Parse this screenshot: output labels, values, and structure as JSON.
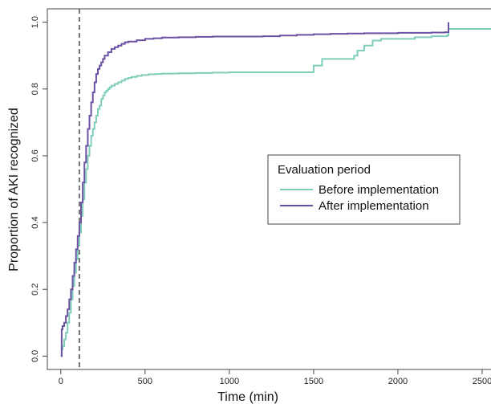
{
  "chart_data": {
    "type": "line",
    "xlabel": "Time (min)",
    "ylabel": "Proportion of AKI recognized",
    "xlim": [
      -80,
      2600
    ],
    "ylim": [
      -0.04,
      1.04
    ],
    "x_ticks": [
      0,
      500,
      1000,
      1500,
      2000,
      2500
    ],
    "y_ticks": [
      0.0,
      0.2,
      0.4,
      0.6,
      0.8,
      1.0
    ],
    "x_tick_labels": [
      "0",
      "500",
      "1000",
      "1500",
      "2000",
      "2500"
    ],
    "y_tick_labels": [
      "0.0",
      "0.2",
      "0.4",
      "0.6",
      "0.8",
      "1.0"
    ],
    "reference_line": {
      "x": 110,
      "style": "dashed",
      "color": "#555555"
    },
    "grid": false,
    "legend": {
      "title": "Evaluation period",
      "placement": "center-right"
    },
    "series": [
      {
        "name": "Before implementation",
        "color": "#7fcdbb",
        "step": true,
        "x": [
          0,
          5,
          10,
          20,
          30,
          40,
          50,
          60,
          70,
          80,
          90,
          100,
          110,
          120,
          130,
          140,
          150,
          160,
          170,
          180,
          190,
          200,
          210,
          220,
          230,
          240,
          250,
          260,
          270,
          280,
          290,
          300,
          320,
          340,
          360,
          380,
          400,
          420,
          450,
          480,
          520,
          560,
          600,
          700,
          800,
          900,
          1000,
          1100,
          1200,
          1300,
          1400,
          1490,
          1500,
          1550,
          1600,
          1650,
          1700,
          1740,
          1760,
          1780,
          1800,
          1850,
          1900,
          2000,
          2100,
          2200,
          2290,
          2300,
          2600
        ],
        "y": [
          0.0,
          0.02,
          0.03,
          0.05,
          0.07,
          0.1,
          0.13,
          0.17,
          0.21,
          0.25,
          0.29,
          0.33,
          0.37,
          0.42,
          0.47,
          0.52,
          0.56,
          0.6,
          0.63,
          0.66,
          0.68,
          0.7,
          0.72,
          0.74,
          0.75,
          0.77,
          0.78,
          0.79,
          0.795,
          0.8,
          0.805,
          0.81,
          0.815,
          0.82,
          0.825,
          0.83,
          0.833,
          0.836,
          0.839,
          0.842,
          0.844,
          0.845,
          0.846,
          0.847,
          0.848,
          0.849,
          0.85,
          0.85,
          0.85,
          0.85,
          0.85,
          0.85,
          0.87,
          0.89,
          0.89,
          0.89,
          0.89,
          0.9,
          0.915,
          0.915,
          0.93,
          0.945,
          0.95,
          0.95,
          0.955,
          0.958,
          0.96,
          0.98,
          0.98
        ]
      },
      {
        "name": "After implementation",
        "color": "#6a51a3",
        "step": true,
        "x": [
          0,
          5,
          10,
          20,
          30,
          40,
          50,
          60,
          70,
          80,
          90,
          100,
          110,
          120,
          130,
          140,
          150,
          160,
          170,
          180,
          190,
          200,
          210,
          220,
          230,
          240,
          250,
          260,
          280,
          300,
          320,
          340,
          360,
          380,
          400,
          450,
          500,
          550,
          600,
          700,
          800,
          900,
          1000,
          1100,
          1200,
          1300,
          1400,
          1500,
          1600,
          1700,
          1800,
          1900,
          2000,
          2100,
          2200,
          2280,
          2290,
          2300
        ],
        "y": [
          0.0,
          0.08,
          0.09,
          0.1,
          0.12,
          0.14,
          0.17,
          0.2,
          0.24,
          0.28,
          0.32,
          0.36,
          0.4,
          0.46,
          0.52,
          0.58,
          0.63,
          0.68,
          0.72,
          0.76,
          0.79,
          0.82,
          0.845,
          0.86,
          0.87,
          0.88,
          0.89,
          0.9,
          0.91,
          0.92,
          0.925,
          0.93,
          0.935,
          0.94,
          0.942,
          0.946,
          0.95,
          0.952,
          0.954,
          0.955,
          0.956,
          0.957,
          0.957,
          0.957,
          0.958,
          0.96,
          0.962,
          0.964,
          0.965,
          0.966,
          0.967,
          0.967,
          0.968,
          0.968,
          0.969,
          0.97,
          0.97,
          1.0
        ]
      }
    ]
  }
}
